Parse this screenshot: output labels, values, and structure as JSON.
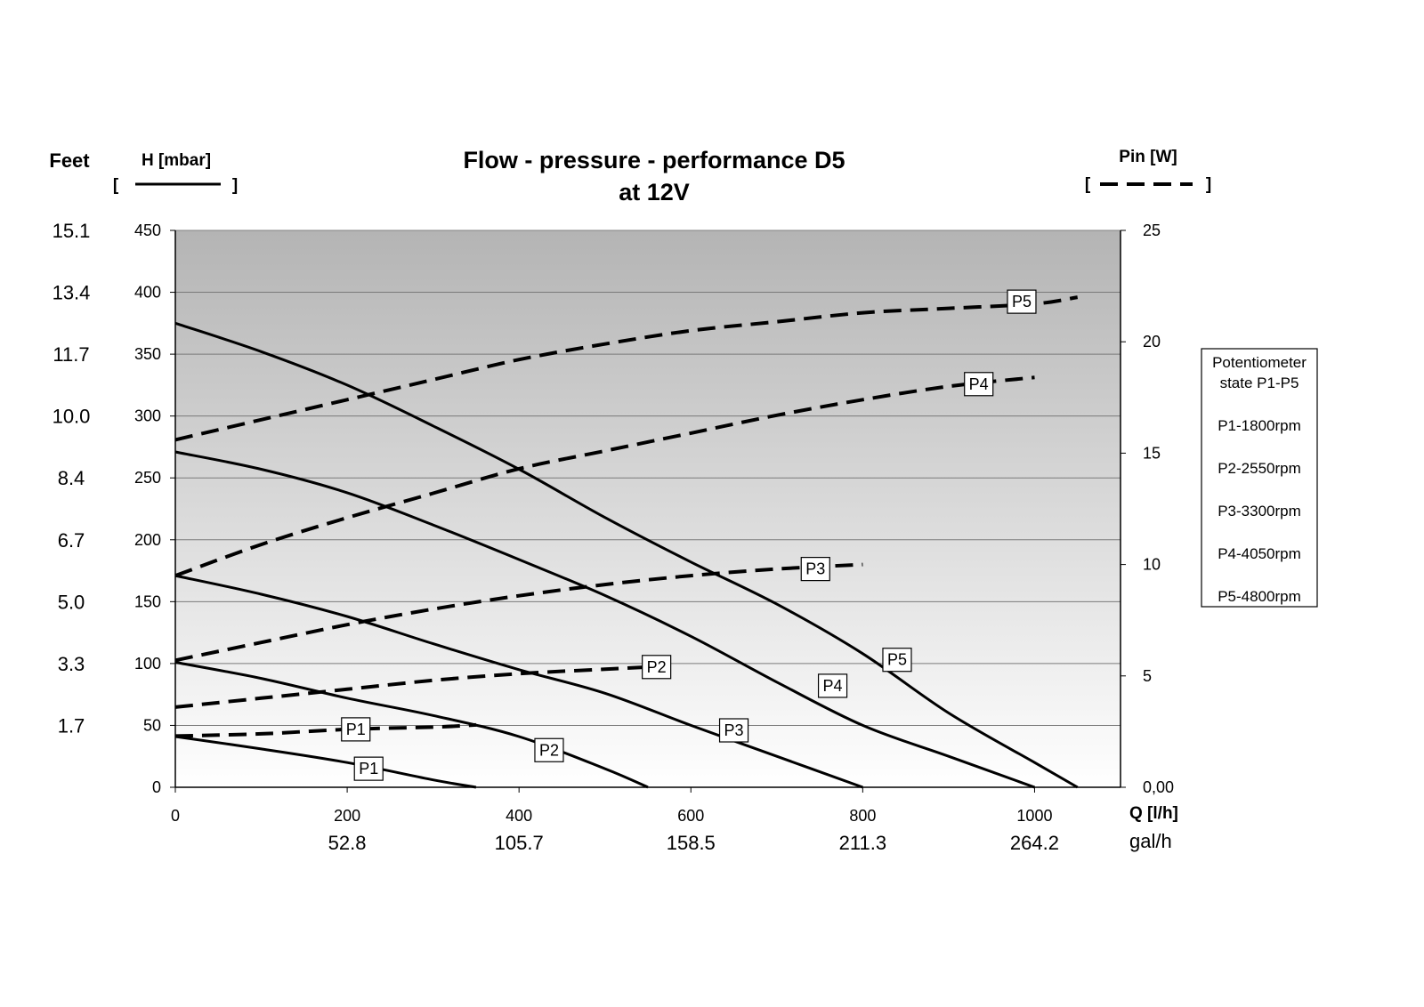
{
  "chart_data": {
    "type": "line",
    "title": "Flow - pressure - performance D5",
    "subtitle": "at 12V",
    "xlabel": "Q [l/h]",
    "x2label": "gal/h",
    "ylabel_left": "H [mbar]",
    "ylabel_left_outer": "Feet",
    "ylabel_right": "Pin [W]",
    "xlim": [
      0,
      1100
    ],
    "ylim": [
      0,
      450
    ],
    "y2lim": [
      0,
      25
    ],
    "grid": true,
    "x_ticks": [
      0,
      200,
      400,
      600,
      800,
      1000
    ],
    "x_tick_labels": [
      "0",
      "200",
      "400",
      "600",
      "800",
      "1000"
    ],
    "x2_tick_labels": [
      "52.8",
      "105.7",
      "158.5",
      "211.3",
      "264.2"
    ],
    "y_ticks": [
      0,
      50,
      100,
      150,
      200,
      250,
      300,
      350,
      400,
      450
    ],
    "y_tick_labels": [
      "0",
      "50",
      "100",
      "150",
      "200",
      "250",
      "300",
      "350",
      "400",
      "450"
    ],
    "feet_tick_labels": [
      "",
      "1.7",
      "3.3",
      "5.0",
      "6.7",
      "8.4",
      "10.0",
      "11.7",
      "13.4",
      "15.1"
    ],
    "y2_ticks": [
      0,
      5,
      10,
      15,
      20,
      25
    ],
    "y2_tick_labels": [
      "0,00",
      "5",
      "10",
      "15",
      "20",
      "25"
    ],
    "legend_placement": "right",
    "legend_lines": [
      "Potentiometer",
      "state  P1-P5",
      "P1-1800rpm",
      "P2-2550rpm",
      "P3-3300rpm",
      "P4-4050rpm",
      "P5-4800rpm"
    ],
    "pressure_series": [
      {
        "name": "P1",
        "x": [
          0,
          100,
          200,
          300,
          350
        ],
        "y": [
          41,
          31,
          20,
          6,
          0
        ]
      },
      {
        "name": "P2",
        "x": [
          0,
          100,
          200,
          300,
          400,
          500,
          550
        ],
        "y": [
          101,
          88,
          72,
          58,
          41,
          15,
          0
        ]
      },
      {
        "name": "P3",
        "x": [
          0,
          100,
          200,
          300,
          400,
          500,
          600,
          700,
          800
        ],
        "y": [
          171,
          156,
          138,
          116,
          95,
          76,
          50,
          25,
          0
        ]
      },
      {
        "name": "P4",
        "x": [
          0,
          100,
          200,
          300,
          400,
          500,
          600,
          700,
          800,
          900,
          1000
        ],
        "y": [
          271,
          257,
          238,
          212,
          184,
          155,
          122,
          85,
          50,
          25,
          0
        ]
      },
      {
        "name": "P5",
        "x": [
          0,
          100,
          200,
          300,
          400,
          500,
          600,
          700,
          800,
          900,
          1000,
          1050
        ],
        "y": [
          375,
          352,
          325,
          292,
          257,
          218,
          182,
          148,
          108,
          60,
          20,
          0
        ]
      }
    ],
    "power_series": [
      {
        "name": "P1",
        "x": [
          0,
          100,
          200,
          300,
          350
        ],
        "y": [
          2.3,
          2.4,
          2.6,
          2.7,
          2.8
        ]
      },
      {
        "name": "P2",
        "x": [
          0,
          100,
          200,
          300,
          400,
          500,
          550
        ],
        "y": [
          3.6,
          4.0,
          4.4,
          4.8,
          5.1,
          5.3,
          5.4
        ]
      },
      {
        "name": "P3",
        "x": [
          0,
          100,
          200,
          300,
          400,
          500,
          600,
          700,
          800
        ],
        "y": [
          5.7,
          6.5,
          7.3,
          8.0,
          8.6,
          9.1,
          9.5,
          9.8,
          10.0
        ]
      },
      {
        "name": "P4",
        "x": [
          0,
          100,
          200,
          300,
          400,
          500,
          600,
          700,
          800,
          900,
          1000
        ],
        "y": [
          9.5,
          10.9,
          12.1,
          13.2,
          14.3,
          15.1,
          15.9,
          16.7,
          17.4,
          18.0,
          18.4
        ]
      },
      {
        "name": "P5",
        "x": [
          0,
          100,
          200,
          300,
          400,
          500,
          600,
          700,
          800,
          900,
          1000,
          1050
        ],
        "y": [
          15.6,
          16.5,
          17.4,
          18.3,
          19.2,
          19.9,
          20.5,
          20.9,
          21.3,
          21.5,
          21.7,
          22.0
        ]
      }
    ],
    "annotations": [
      {
        "text": "P1",
        "series": "pressure",
        "x": 225,
        "y": 15
      },
      {
        "text": "P2",
        "series": "pressure",
        "x": 435,
        "y": 30
      },
      {
        "text": "P3",
        "series": "pressure",
        "x": 650,
        "y": 46
      },
      {
        "text": "P4",
        "series": "pressure",
        "x": 765,
        "y": 82
      },
      {
        "text": "P5",
        "series": "pressure",
        "x": 840,
        "y": 103
      },
      {
        "text": "P1",
        "series": "power",
        "x": 210,
        "y": 2.6
      },
      {
        "text": "P2",
        "series": "power",
        "x": 560,
        "y": 5.4
      },
      {
        "text": "P3",
        "series": "power",
        "x": 745,
        "y": 9.8
      },
      {
        "text": "P4",
        "series": "power",
        "x": 935,
        "y": 18.1
      },
      {
        "text": "P5",
        "series": "power",
        "x": 985,
        "y": 21.8
      }
    ]
  }
}
